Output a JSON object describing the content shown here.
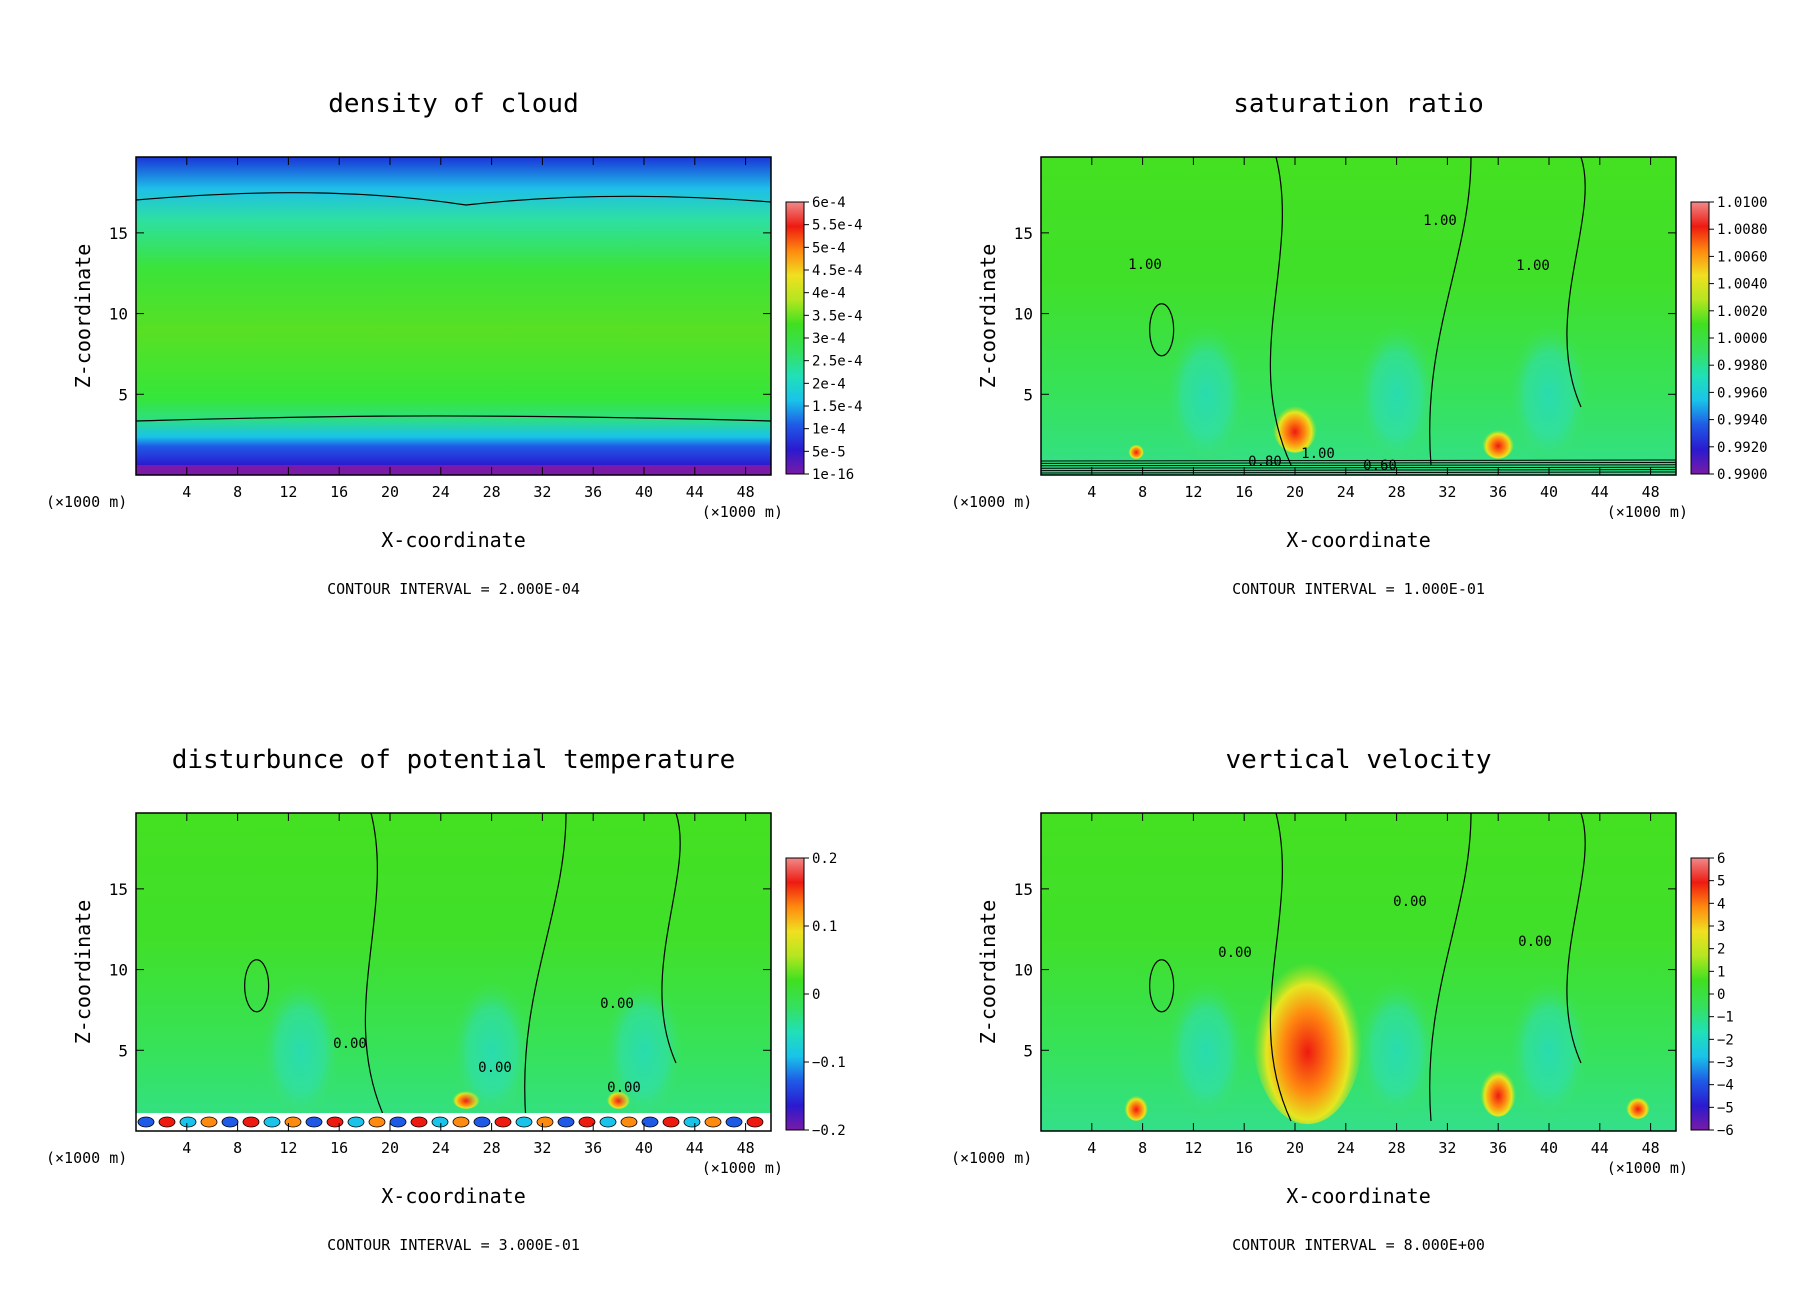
{
  "figure": {
    "x_unit_left": "(×1000 m)",
    "x_unit_right": "(×1000 m)",
    "x_label": "X-coordinate",
    "y_label": "Z-coordinate"
  },
  "chart_data": [
    {
      "type": "heatmap",
      "title": "density of cloud",
      "xlabel": "X-coordinate",
      "ylabel": "Z-coordinate",
      "x_ticks": [
        "4",
        "8",
        "12",
        "16",
        "20",
        "24",
        "28",
        "32",
        "36",
        "40",
        "44",
        "48"
      ],
      "y_ticks": [
        "5",
        "10",
        "15"
      ],
      "xlim": [
        0,
        50
      ],
      "ylim": [
        0,
        19.7
      ],
      "colorbar": [
        "1e-16",
        "5e-5",
        "1e-4",
        "1.5e-4",
        "2e-4",
        "2.5e-4",
        "3e-4",
        "3.5e-4",
        "4e-4",
        "4.5e-4",
        "5e-4",
        "5.5e-4",
        "6e-4"
      ],
      "contour_interval_text": "CONTOUR INTERVAL = 2.000E-04",
      "contour_labels": []
    },
    {
      "type": "heatmap",
      "title": "saturation ratio",
      "xlabel": "X-coordinate",
      "ylabel": "Z-coordinate",
      "x_ticks": [
        "4",
        "8",
        "12",
        "16",
        "20",
        "24",
        "28",
        "32",
        "36",
        "40",
        "44",
        "48"
      ],
      "y_ticks": [
        "5",
        "10",
        "15"
      ],
      "xlim": [
        0,
        50
      ],
      "ylim": [
        0,
        19.7
      ],
      "colorbar": [
        "0.9900",
        "0.9920",
        "0.9940",
        "0.9960",
        "0.9980",
        "1.0000",
        "1.0020",
        "1.0040",
        "1.0060",
        "1.0080",
        "1.0100"
      ],
      "contour_interval_text": "CONTOUR INTERVAL = 1.000E-01",
      "contour_labels": [
        "1.00",
        "1.00",
        "1.00",
        "0.80",
        "1.00",
        "0.60"
      ]
    },
    {
      "type": "heatmap",
      "title": "disturbunce of potential temperature",
      "xlabel": "X-coordinate",
      "ylabel": "Z-coordinate",
      "x_ticks": [
        "4",
        "8",
        "12",
        "16",
        "20",
        "24",
        "28",
        "32",
        "36",
        "40",
        "44",
        "48"
      ],
      "y_ticks": [
        "5",
        "10",
        "15"
      ],
      "xlim": [
        0,
        50
      ],
      "ylim": [
        0,
        19.7
      ],
      "colorbar": [
        "−0.2",
        "−0.1",
        "0",
        "0.1",
        "0.2"
      ],
      "contour_interval_text": "CONTOUR INTERVAL = 3.000E-01",
      "contour_labels": [
        "0.00",
        "0.00",
        "0.00",
        "0.00"
      ]
    },
    {
      "type": "heatmap",
      "title": "vertical velocity",
      "xlabel": "X-coordinate",
      "ylabel": "Z-coordinate",
      "x_ticks": [
        "4",
        "8",
        "12",
        "16",
        "20",
        "24",
        "28",
        "32",
        "36",
        "40",
        "44",
        "48"
      ],
      "y_ticks": [
        "5",
        "10",
        "15"
      ],
      "xlim": [
        0,
        50
      ],
      "ylim": [
        0,
        19.7
      ],
      "colorbar": [
        "−6",
        "−5",
        "−4",
        "−3",
        "−2",
        "−1",
        "0",
        "1",
        "2",
        "3",
        "4",
        "5",
        "6"
      ],
      "contour_interval_text": "CONTOUR INTERVAL = 8.000E+00",
      "contour_labels": [
        "0.00",
        "0.00",
        "0.00"
      ]
    }
  ]
}
